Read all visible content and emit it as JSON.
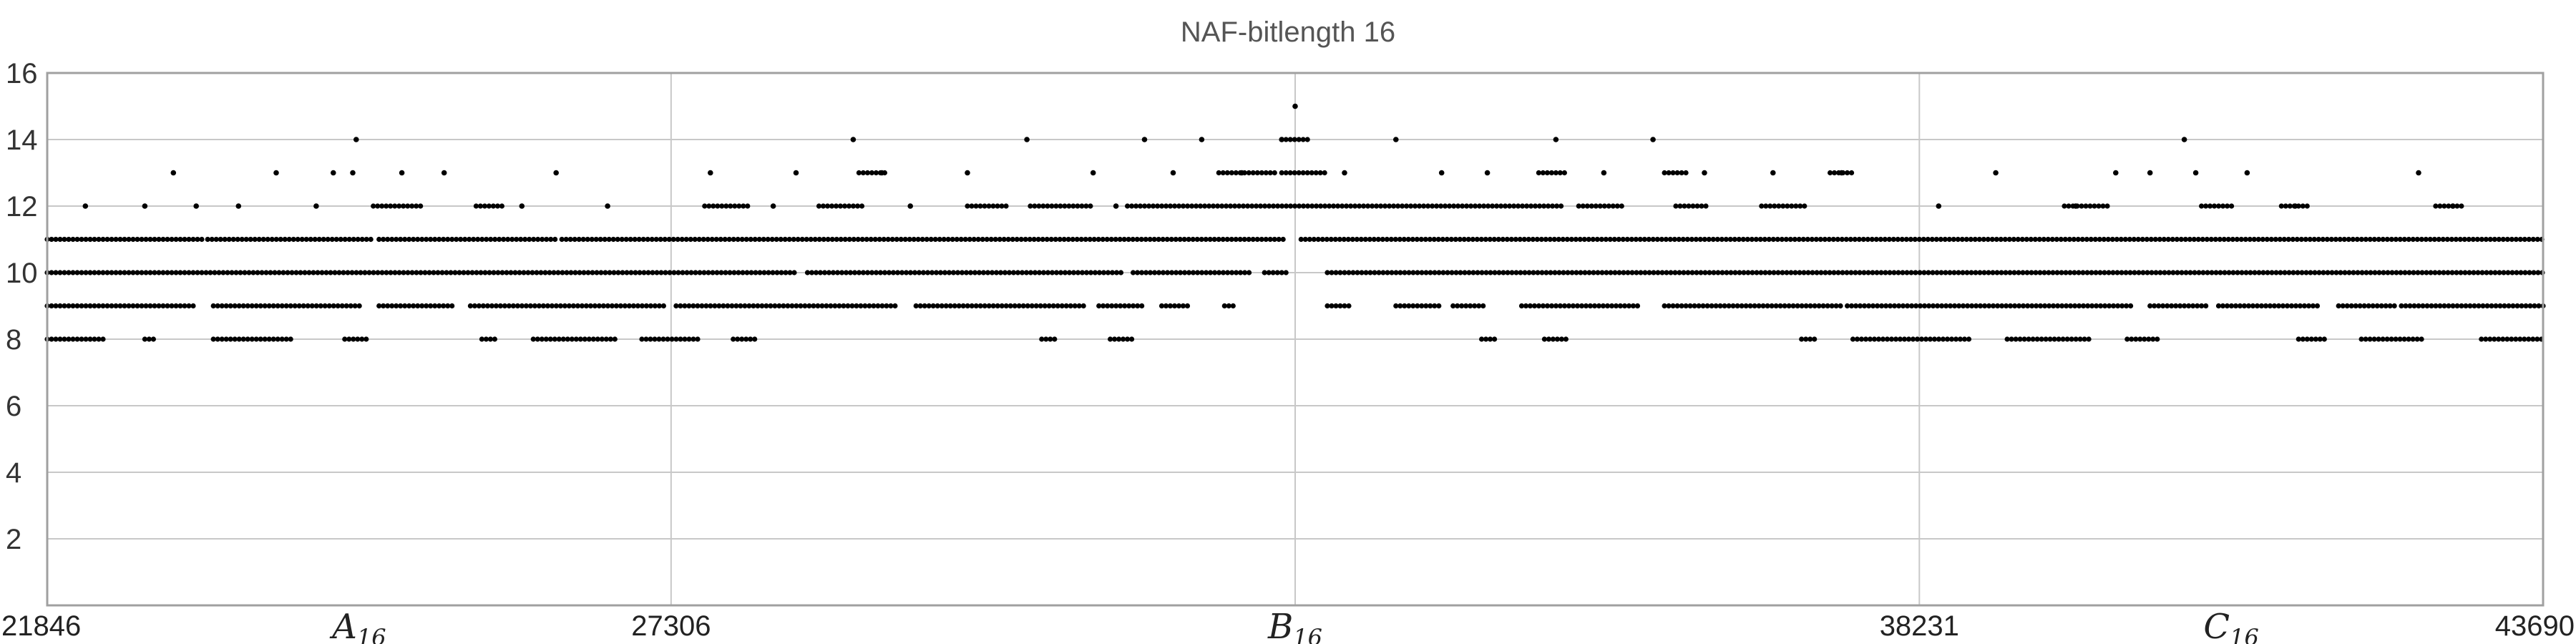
{
  "chart_data": {
    "type": "scatter",
    "title": "NAF-bitlength 16",
    "x_min": 21846,
    "x_max": 43690,
    "ylim": [
      0,
      16
    ],
    "y_ticks": [
      "2",
      "4",
      "6",
      "8",
      "10",
      "12",
      "14",
      "16"
    ],
    "x_tick_numbers": [
      "21846",
      "27306",
      "38231",
      "43690"
    ],
    "x_tick_symbols": [
      {
        "symbol": "A",
        "subscript": "16"
      },
      {
        "symbol": "B",
        "subscript": "16"
      },
      {
        "symbol": "C",
        "subscript": "16"
      }
    ],
    "vertical_gridlines_at": [
      27306,
      32768,
      38231
    ],
    "point_color": "#000000",
    "points": [
      [
        22180,
        12
      ],
      [
        22700,
        12
      ],
      [
        22950,
        13
      ],
      [
        23150,
        12
      ],
      [
        23520,
        12
      ],
      [
        23850,
        13
      ],
      [
        24200,
        12
      ],
      [
        24350,
        13
      ],
      [
        24520,
        13
      ],
      [
        24550,
        14
      ],
      [
        24950,
        13
      ],
      [
        25320,
        13
      ],
      [
        26000,
        12
      ],
      [
        26300,
        13
      ],
      [
        26750,
        12
      ],
      [
        27650,
        13
      ],
      [
        28200,
        12
      ],
      [
        28400,
        13
      ],
      [
        28900,
        14
      ],
      [
        29150,
        13
      ],
      [
        29400,
        12
      ],
      [
        29900,
        13
      ],
      [
        30420,
        14
      ],
      [
        31000,
        13
      ],
      [
        31200,
        12
      ],
      [
        31450,
        14
      ],
      [
        31700,
        13
      ],
      [
        31950,
        14
      ],
      [
        32300,
        13
      ],
      [
        32650,
        14
      ],
      [
        32768,
        15
      ],
      [
        33200,
        13
      ],
      [
        33650,
        14
      ],
      [
        34050,
        13
      ],
      [
        34450,
        13
      ],
      [
        35050,
        14
      ],
      [
        35470,
        13
      ],
      [
        35900,
        14
      ],
      [
        36350,
        13
      ],
      [
        36950,
        13
      ],
      [
        37550,
        13
      ],
      [
        38400,
        12
      ],
      [
        38900,
        13
      ],
      [
        39600,
        12
      ],
      [
        39950,
        13
      ],
      [
        40250,
        13
      ],
      [
        40550,
        14
      ],
      [
        40650,
        13
      ],
      [
        41100,
        13
      ],
      [
        41520,
        12
      ],
      [
        42600,
        13
      ],
      [
        42900,
        12
      ]
    ],
    "runs": [
      {
        "y": 8,
        "ranges": [
          [
            21846,
            22350
          ],
          [
            22700,
            22800
          ],
          [
            23300,
            24000
          ],
          [
            24450,
            24650
          ],
          [
            25650,
            25800
          ],
          [
            26100,
            26850
          ],
          [
            27050,
            27550
          ],
          [
            27850,
            28050
          ],
          [
            30550,
            30700
          ],
          [
            31150,
            31350
          ],
          [
            34400,
            34550
          ],
          [
            34950,
            35150
          ],
          [
            37200,
            37350
          ],
          [
            37650,
            38700
          ],
          [
            39000,
            39750
          ],
          [
            40050,
            40350
          ],
          [
            41550,
            41800
          ],
          [
            42100,
            42650
          ],
          [
            43150,
            43690
          ]
        ]
      },
      {
        "y": 9,
        "ranges": [
          [
            21846,
            23150
          ],
          [
            23300,
            24600
          ],
          [
            24750,
            25400
          ],
          [
            25550,
            27250
          ],
          [
            27350,
            29300
          ],
          [
            29450,
            30950
          ],
          [
            31050,
            31450
          ],
          [
            31600,
            31850
          ],
          [
            32150,
            32250
          ],
          [
            33050,
            33250
          ],
          [
            33650,
            34050
          ],
          [
            34150,
            34450
          ],
          [
            34750,
            35800
          ],
          [
            36000,
            37550
          ],
          [
            37600,
            40100
          ],
          [
            40250,
            40750
          ],
          [
            40850,
            41750
          ],
          [
            41900,
            42400
          ],
          [
            42450,
            43690
          ]
        ]
      },
      {
        "y": 10,
        "ranges": [
          [
            21846,
            28400
          ],
          [
            28500,
            31250
          ],
          [
            31350,
            32400
          ],
          [
            32500,
            32700
          ],
          [
            33050,
            43690
          ]
        ]
      },
      {
        "y": 11,
        "ranges": [
          [
            21846,
            23200
          ],
          [
            23250,
            24700
          ],
          [
            24750,
            26300
          ],
          [
            26350,
            32700
          ],
          [
            32820,
            43690
          ]
        ]
      },
      {
        "y": 12,
        "ranges": [
          [
            24700,
            25150
          ],
          [
            25600,
            25850
          ],
          [
            27600,
            28000
          ],
          [
            28600,
            29000
          ],
          [
            29900,
            30250
          ],
          [
            30450,
            31000
          ],
          [
            31300,
            35100
          ],
          [
            35250,
            35650
          ],
          [
            36100,
            36400
          ],
          [
            36850,
            37250
          ],
          [
            39500,
            39900
          ],
          [
            40700,
            41000
          ],
          [
            41400,
            41650
          ],
          [
            42750,
            43000
          ]
        ]
      },
      {
        "y": 13,
        "ranges": [
          [
            28950,
            29200
          ],
          [
            32100,
            32600
          ],
          [
            32650,
            33050
          ],
          [
            34900,
            35150
          ],
          [
            36000,
            36200
          ],
          [
            37450,
            37650
          ]
        ]
      },
      {
        "y": 14,
        "ranges": [
          [
            32650,
            32900
          ]
        ]
      }
    ]
  }
}
